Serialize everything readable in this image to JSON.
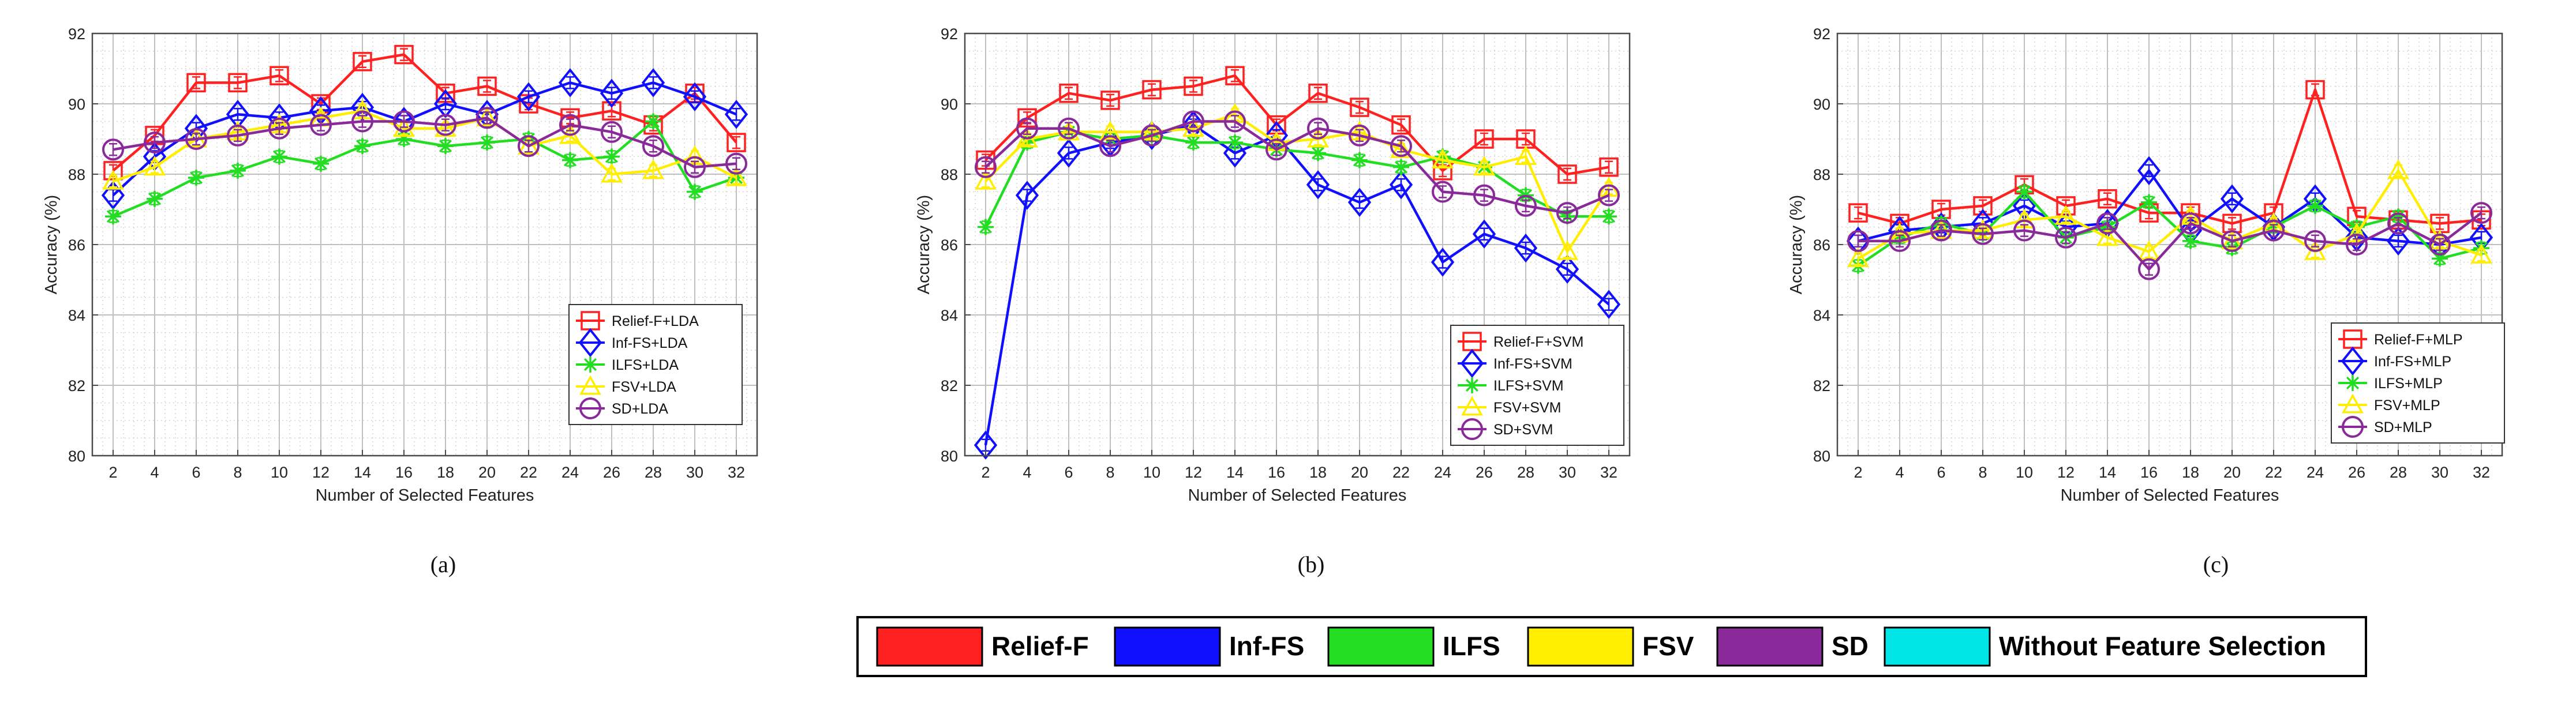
{
  "colors": {
    "relief": "#ff2020",
    "inf": "#1010ff",
    "ilfs": "#22dd22",
    "fsv": "#ffee00",
    "sd": "#8a2a9a",
    "without": "#00e5e5"
  },
  "chart_data": [
    {
      "type": "line",
      "panel_label": "(a)",
      "xlabel": "Number of Selected Features",
      "ylabel": "Accuracy (%)",
      "x": [
        2,
        4,
        6,
        8,
        10,
        12,
        14,
        16,
        18,
        20,
        22,
        24,
        26,
        28,
        30,
        32
      ],
      "xticks": [
        "2",
        "4",
        "6",
        "8",
        "10",
        "12",
        "14",
        "16",
        "18",
        "20",
        "22",
        "24",
        "26",
        "28",
        "30",
        "32"
      ],
      "ylim": [
        80,
        92
      ],
      "yticks": [
        "80",
        "82",
        "84",
        "86",
        "88",
        "90",
        "92"
      ],
      "grid": true,
      "legend_position": "bottom-right",
      "series": [
        {
          "name": "Relief-F+LDA",
          "color": "relief",
          "marker": "square",
          "values": [
            88.1,
            89.1,
            90.6,
            90.6,
            90.8,
            90.0,
            91.2,
            91.4,
            90.3,
            90.5,
            90.0,
            89.6,
            89.8,
            89.4,
            90.3,
            88.9
          ]
        },
        {
          "name": "Inf-FS+LDA",
          "color": "inf",
          "marker": "diamond",
          "values": [
            87.4,
            88.5,
            89.3,
            89.7,
            89.6,
            89.8,
            89.9,
            89.5,
            90.0,
            89.7,
            90.2,
            90.6,
            90.3,
            90.6,
            90.2,
            89.7
          ]
        },
        {
          "name": "ILFS+LDA",
          "color": "ilfs",
          "marker": "asterisk",
          "values": [
            86.8,
            87.3,
            87.9,
            88.1,
            88.5,
            88.3,
            88.8,
            89.0,
            88.8,
            88.9,
            89.0,
            88.4,
            88.5,
            89.5,
            87.5,
            87.9
          ]
        },
        {
          "name": "FSV+LDA",
          "color": "fsv",
          "marker": "triangle",
          "values": [
            87.8,
            88.2,
            89.0,
            89.2,
            89.4,
            89.6,
            89.8,
            89.3,
            89.3,
            89.6,
            88.8,
            89.1,
            88.0,
            88.1,
            88.5,
            87.9
          ]
        },
        {
          "name": "SD+LDA",
          "color": "sd",
          "marker": "circle",
          "values": [
            88.7,
            88.9,
            89.0,
            89.1,
            89.3,
            89.4,
            89.5,
            89.5,
            89.4,
            89.6,
            88.8,
            89.4,
            89.2,
            88.8,
            88.2,
            88.3
          ]
        }
      ]
    },
    {
      "type": "line",
      "panel_label": "(b)",
      "xlabel": "Number of Selected Features",
      "ylabel": "Accuracy (%)",
      "x": [
        2,
        4,
        6,
        8,
        10,
        12,
        14,
        16,
        18,
        20,
        22,
        24,
        26,
        28,
        30,
        32
      ],
      "xticks": [
        "2",
        "4",
        "6",
        "8",
        "10",
        "12",
        "14",
        "16",
        "18",
        "20",
        "22",
        "24",
        "26",
        "28",
        "30",
        "32"
      ],
      "ylim": [
        80,
        92
      ],
      "yticks": [
        "80",
        "82",
        "84",
        "86",
        "88",
        "90",
        "92"
      ],
      "grid": true,
      "legend_position": "bottom-right",
      "series": [
        {
          "name": "Relief-F+SVM",
          "color": "relief",
          "marker": "square",
          "values": [
            88.4,
            89.6,
            90.3,
            90.1,
            90.4,
            90.5,
            90.8,
            89.4,
            90.3,
            89.9,
            89.4,
            88.1,
            89.0,
            89.0,
            88.0,
            88.2
          ]
        },
        {
          "name": "Inf-FS+SVM",
          "color": "inf",
          "marker": "diamond",
          "values": [
            80.3,
            87.4,
            88.6,
            88.9,
            89.1,
            89.4,
            88.6,
            89.1,
            87.7,
            87.2,
            87.7,
            85.5,
            86.3,
            85.9,
            85.3,
            84.3
          ]
        },
        {
          "name": "ILFS+SVM",
          "color": "ilfs",
          "marker": "asterisk",
          "values": [
            86.5,
            88.9,
            89.2,
            89.0,
            89.1,
            88.9,
            88.9,
            88.7,
            88.6,
            88.4,
            88.2,
            88.5,
            88.2,
            87.4,
            86.8,
            86.8
          ]
        },
        {
          "name": "FSV+SVM",
          "color": "fsv",
          "marker": "triangle",
          "values": [
            87.8,
            89.0,
            89.2,
            89.2,
            89.2,
            89.3,
            89.7,
            88.9,
            89.0,
            89.2,
            88.7,
            88.4,
            88.2,
            88.5,
            85.8,
            87.6
          ]
        },
        {
          "name": "SD+SVM",
          "color": "sd",
          "marker": "circle",
          "values": [
            88.2,
            89.3,
            89.3,
            88.8,
            89.1,
            89.5,
            89.5,
            88.7,
            89.3,
            89.1,
            88.8,
            87.5,
            87.4,
            87.1,
            86.9,
            87.4
          ]
        }
      ]
    },
    {
      "type": "line",
      "panel_label": "(c)",
      "xlabel": "Number of Selected Features",
      "ylabel": "Accuracy (%)",
      "x": [
        2,
        4,
        6,
        8,
        10,
        12,
        14,
        16,
        18,
        20,
        22,
        24,
        26,
        28,
        30,
        32
      ],
      "xticks": [
        "2",
        "4",
        "6",
        "8",
        "10",
        "12",
        "14",
        "16",
        "18",
        "20",
        "22",
        "24",
        "26",
        "28",
        "30",
        "32"
      ],
      "ylim": [
        80,
        92
      ],
      "yticks": [
        "80",
        "82",
        "84",
        "86",
        "88",
        "90",
        "92"
      ],
      "grid": true,
      "legend_position": "bottom-right",
      "series": [
        {
          "name": "Relief-F+MLP",
          "color": "relief",
          "marker": "square",
          "values": [
            86.9,
            86.6,
            87.0,
            87.1,
            87.7,
            87.1,
            87.3,
            86.9,
            86.9,
            86.6,
            86.9,
            90.4,
            86.8,
            86.7,
            86.6,
            86.7
          ]
        },
        {
          "name": "Inf-FS+MLP",
          "color": "inf",
          "marker": "diamond",
          "values": [
            86.1,
            86.4,
            86.5,
            86.6,
            87.1,
            86.5,
            86.6,
            88.1,
            86.4,
            87.3,
            86.5,
            87.3,
            86.2,
            86.1,
            86.0,
            86.2
          ]
        },
        {
          "name": "ILFS+MLP",
          "color": "ilfs",
          "marker": "asterisk",
          "values": [
            85.4,
            86.2,
            86.6,
            86.3,
            87.5,
            86.2,
            86.5,
            87.2,
            86.1,
            85.9,
            86.5,
            87.1,
            86.5,
            86.8,
            85.6,
            85.9
          ]
        },
        {
          "name": "FSV+MLP",
          "color": "fsv",
          "marker": "triangle",
          "values": [
            85.6,
            86.3,
            86.4,
            86.4,
            86.7,
            86.8,
            86.2,
            85.8,
            86.8,
            86.1,
            86.6,
            85.8,
            86.3,
            88.1,
            86.1,
            85.7
          ]
        },
        {
          "name": "SD+MLP",
          "color": "sd",
          "marker": "circle",
          "values": [
            86.1,
            86.1,
            86.4,
            86.3,
            86.4,
            86.2,
            86.6,
            85.3,
            86.6,
            86.1,
            86.4,
            86.1,
            86.0,
            86.6,
            86.0,
            86.9
          ]
        }
      ]
    }
  ],
  "bottom_legend": [
    {
      "label": "Relief-F",
      "color": "relief"
    },
    {
      "label": "Inf-FS",
      "color": "inf"
    },
    {
      "label": "ILFS",
      "color": "ilfs"
    },
    {
      "label": "FSV",
      "color": "fsv"
    },
    {
      "label": "SD",
      "color": "sd"
    },
    {
      "label": "Without Feature Selection",
      "color": "without"
    }
  ]
}
